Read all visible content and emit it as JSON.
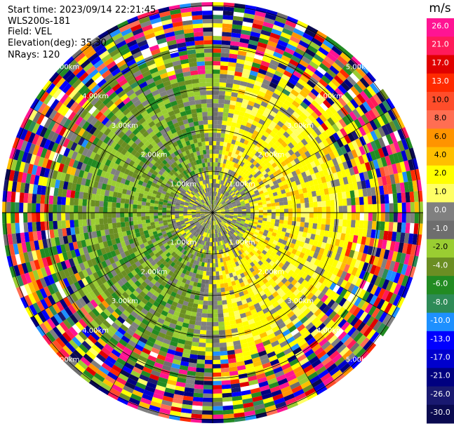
{
  "header": {
    "start_time": "Start time: 2023/09/14 22:21:45",
    "instrument": "WLS200s-181",
    "field": "Field: VEL",
    "elevation": "Elevation(deg): 35.30",
    "nrays": "NRays: 120"
  },
  "colorbar": {
    "unit": "m/s",
    "ticks": [
      "26.0",
      "21.0",
      "17.0",
      "13.0",
      "10.0",
      "8.0",
      "6.0",
      "4.0",
      "2.0",
      "1.0",
      "0.0",
      "-1.0",
      "-2.0",
      "-4.0",
      "-6.0",
      "-8.0",
      "-10.0",
      "-13.0",
      "-17.0",
      "-21.0",
      "-26.0",
      "-30.0"
    ],
    "colors": [
      "#ff1493",
      "#ff1a5a",
      "#e00000",
      "#ff2a00",
      "#ff4d2a",
      "#ff6e52",
      "#ff9400",
      "#ffbf00",
      "#ffff00",
      "#ffff66",
      "#808080",
      "#6e6e6e",
      "#9acd32",
      "#6b8e23",
      "#228b22",
      "#2e8b57",
      "#1e90ff",
      "#0000ff",
      "#0000cd",
      "#000080",
      "#191970",
      "#0a0a50"
    ]
  },
  "chart_data": {
    "type": "heatmap",
    "subtype": "ppi-polar",
    "field": "VEL",
    "unit": "m/s",
    "nrays": 120,
    "elevation_deg": 35.3,
    "range_rings_km": [
      1.0,
      2.0,
      3.0,
      4.0,
      5.0
    ],
    "range_ring_labels": [
      "1.00km",
      "2.00km",
      "3.00km",
      "4.00km",
      "5.00km"
    ],
    "colorbar_range": [
      -30.0,
      26.0
    ]
  }
}
